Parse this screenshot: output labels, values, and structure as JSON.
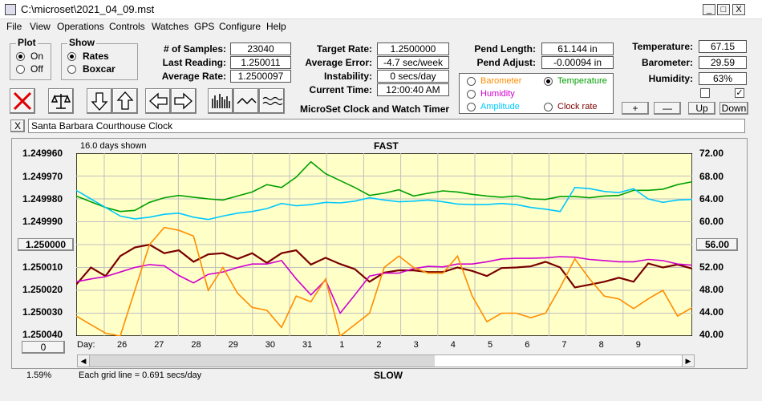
{
  "window": {
    "title": "C:\\microset\\2021_04_09.mst",
    "min": "_",
    "max": "□",
    "close": "X"
  },
  "menu": [
    "File",
    "View",
    "Operations",
    "Controls",
    "Watches",
    "GPS",
    "Configure",
    "Help"
  ],
  "plot_group": {
    "title": "Plot",
    "options": [
      "On",
      "Off"
    ],
    "selected": "On"
  },
  "show_group": {
    "title": "Show",
    "options": [
      "Rates",
      "Boxcar"
    ],
    "selected": "Rates"
  },
  "stats": {
    "samples_label": "# of Samples:",
    "samples": "23040",
    "last_label": "Last Reading:",
    "last": "1.250011",
    "avg_label": "Average Rate:",
    "avg": "1.2500097"
  },
  "target": {
    "rate_label": "Target Rate:",
    "rate": "1.2500000",
    "err_label": "Average Error:",
    "err": "-4.7 sec/week",
    "inst_label": "Instability:",
    "inst": "0 secs/day",
    "time_label": "Current Time:",
    "time": "12:00:40 AM",
    "app_title": "MicroSet Clock and Watch Timer"
  },
  "pend": {
    "len_label": "Pend Length:",
    "len": "61.144 in",
    "adj_label": "Pend Adjust:",
    "adj": "-0.00094 in"
  },
  "env": {
    "temp_label": "Temperature:",
    "temp": "67.15",
    "baro_label": "Barometer:",
    "baro": "29.59",
    "hum_label": "Humidity:",
    "hum": "63%"
  },
  "sensors": {
    "barometer": "Barometer",
    "temperature": "Temperature",
    "humidity": "Humidity",
    "amplitude": "Amplitude",
    "clockrate": "Clock rate",
    "selected": "Temperature",
    "colors": {
      "barometer": "#ff8c00",
      "temperature": "#00a000",
      "humidity": "#d000d0",
      "amplitude": "#00c8ff",
      "clockrate": "#7a0000"
    }
  },
  "adjust_buttons": [
    "+",
    "—",
    "Up",
    "Down"
  ],
  "checkbox_right": "✓",
  "clock_name": "Santa Barbara Courthouse Clock",
  "clear_btn": "X",
  "chart_data": {
    "type": "line",
    "days_shown": "16.0 days shown",
    "top_label": "FAST",
    "bottom_label": "SLOW",
    "grid_note": "Each grid line = 0.691 secs/day",
    "percent": "1.59%",
    "left_ticks": [
      "1.249960",
      "1.249970",
      "1.249980",
      "1.249990",
      "1.250000",
      "1.250010",
      "1.250020",
      "1.250030",
      "1.250040"
    ],
    "left_button": "1.250000",
    "zero_button": "0",
    "right_ticks": [
      "72.00",
      "68.00",
      "64.00",
      "60.00",
      "56.00",
      "52.00",
      "48.00",
      "44.00",
      "40.00"
    ],
    "right_button": "56.00",
    "x_prefix": "Day:",
    "x_ticks": [
      "26",
      "27",
      "28",
      "29",
      "30",
      "31",
      "1",
      "2",
      "3",
      "4",
      "5",
      "6",
      "7",
      "8",
      "9"
    ],
    "series": [
      {
        "name": "Temperature",
        "color": "#00a000",
        "values": [
          64.5,
          63.5,
          62.5,
          61.8,
          62.0,
          63.4,
          64.2,
          64.6,
          64.3,
          64.0,
          63.8,
          64.5,
          65.2,
          66.5,
          66.0,
          67.8,
          70.5,
          68.4,
          67.2,
          66.0,
          64.6,
          65.0,
          65.6,
          64.5,
          65.0,
          65.4,
          65.2,
          64.8,
          64.5,
          64.3,
          64.5,
          64.0,
          63.9,
          64.4,
          64.4,
          64.2,
          64.5,
          64.6,
          65.5,
          65.5,
          65.7,
          66.5,
          67.0
        ]
      },
      {
        "name": "Amplitude",
        "color": "#00c8ff",
        "values": [
          65.5,
          64.0,
          62.5,
          61.0,
          60.5,
          60.8,
          61.3,
          61.5,
          60.8,
          60.4,
          61.0,
          61.5,
          61.8,
          62.3,
          63.2,
          62.8,
          63.0,
          63.4,
          63.3,
          63.6,
          64.2,
          63.8,
          63.5,
          63.6,
          63.8,
          63.5,
          63.1,
          63.0,
          63.0,
          63.2,
          63.0,
          62.5,
          62.2,
          61.8,
          66.0,
          65.8,
          65.3,
          65.1,
          65.8,
          64.0,
          63.4,
          63.8,
          63.9
        ]
      },
      {
        "name": "Clock rate",
        "color": "#7a0000",
        "values": [
          49.0,
          52.0,
          50.5,
          54.0,
          55.5,
          56.0,
          54.5,
          55.0,
          53.0,
          54.3,
          54.5,
          53.5,
          54.5,
          52.8,
          54.5,
          55.0,
          52.5,
          53.7,
          52.6,
          51.7,
          49.5,
          51.1,
          51.5,
          51.5,
          51.2,
          51.2,
          52.0,
          51.4,
          50.5,
          51.9,
          52.0,
          52.2,
          53.0,
          52.0,
          48.5,
          49.0,
          49.5,
          50.2,
          49.5,
          52.7,
          52.0,
          52.5,
          51.8
        ]
      },
      {
        "name": "Humidity",
        "color": "#d000d0",
        "values": [
          49.5,
          50.0,
          50.4,
          51.2,
          52.0,
          52.5,
          52.3,
          50.6,
          49.3,
          50.8,
          51.2,
          52.0,
          52.6,
          52.6,
          53.2,
          50.0,
          47.2,
          49.8,
          44.0,
          47.2,
          50.5,
          51.0,
          51.0,
          51.8,
          52.2,
          52.1,
          52.6,
          52.6,
          53.0,
          53.5,
          53.6,
          53.6,
          53.7,
          53.9,
          53.8,
          53.4,
          53.2,
          53.0,
          53.0,
          53.4,
          53.2,
          52.6,
          52.4
        ]
      },
      {
        "name": "Barometer",
        "color": "#ff8c00",
        "values": [
          43.5,
          42.0,
          40.5,
          40.0,
          48.0,
          56.0,
          59.0,
          58.5,
          57.5,
          48.0,
          52.0,
          47.5,
          45.0,
          44.5,
          41.5,
          47.0,
          46.0,
          50.0,
          40.0,
          42.0,
          44.0,
          52.0,
          54.0,
          52.0,
          51.0,
          51.0,
          54.0,
          47.0,
          42.5,
          44.0,
          44.0,
          43.2,
          44.0,
          48.5,
          53.5,
          50.0,
          47.0,
          46.5,
          44.8,
          46.5,
          48.0,
          43.5,
          45.0
        ]
      }
    ],
    "ylim_right": [
      40,
      72
    ]
  }
}
